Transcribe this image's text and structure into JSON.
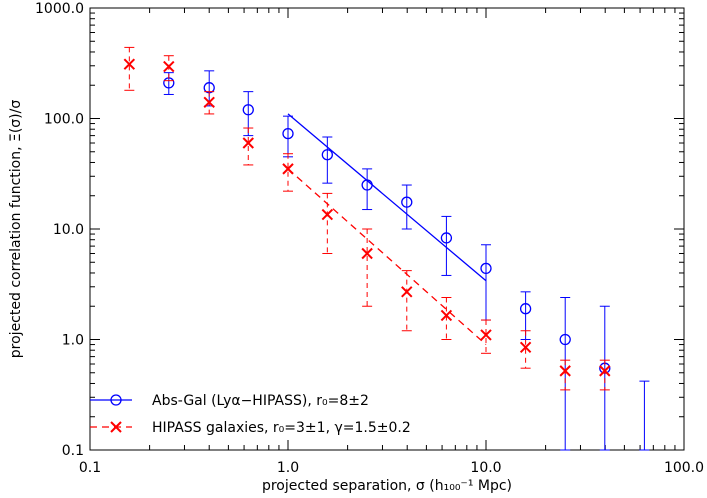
{
  "chart_data": {
    "type": "scatter",
    "xscale": "log",
    "yscale": "log",
    "xlim": [
      0.1,
      100.0
    ],
    "ylim": [
      0.1,
      1000.0
    ],
    "xlabel": "projected separation, σ (h₁₀₀⁻¹ Mpc)",
    "ylabel": "projected correlation function, Ξ(σ)/σ",
    "xticks": [
      {
        "value": 0.1,
        "label": "0.1"
      },
      {
        "value": 1.0,
        "label": "1.0"
      },
      {
        "value": 10.0,
        "label": "10.0"
      },
      {
        "value": 100.0,
        "label": "100.0"
      }
    ],
    "yticks": [
      {
        "value": 0.1,
        "label": "0.1"
      },
      {
        "value": 1.0,
        "label": "1.0"
      },
      {
        "value": 10.0,
        "label": "10.0"
      },
      {
        "value": 100.0,
        "label": "100.0"
      },
      {
        "value": 1000.0,
        "label": "1000.0"
      }
    ],
    "grid": false,
    "legend_position": "bottom-left",
    "series": [
      {
        "name": "Abs-Gal (Lyα−HIPASS), r₀=8±2",
        "color": "#0000ff",
        "marker": "circle",
        "linestyle": "solid",
        "points": [
          {
            "x": 0.25,
            "y": 210,
            "lo": 165,
            "hi": 260
          },
          {
            "x": 0.4,
            "y": 190,
            "lo": 130,
            "hi": 270
          },
          {
            "x": 0.63,
            "y": 120,
            "lo": 70,
            "hi": 175
          },
          {
            "x": 1.0,
            "y": 73,
            "lo": 45,
            "hi": 105
          },
          {
            "x": 1.58,
            "y": 47,
            "lo": 26,
            "hi": 68
          },
          {
            "x": 2.51,
            "y": 25,
            "lo": 15,
            "hi": 35
          },
          {
            "x": 3.98,
            "y": 17.5,
            "lo": 10,
            "hi": 25
          },
          {
            "x": 6.31,
            "y": 8.3,
            "lo": 3.8,
            "hi": 13
          },
          {
            "x": 10.0,
            "y": 4.4,
            "lo": 1.5,
            "hi": 7.2
          },
          {
            "x": 15.85,
            "y": 1.9,
            "lo": 1.0,
            "hi": 2.7
          },
          {
            "x": 25.12,
            "y": 1.0,
            "lo": 0.1,
            "hi": 2.4
          },
          {
            "x": 39.81,
            "y": 0.55,
            "lo": 0.1,
            "hi": 2.0
          },
          {
            "x": 63.1,
            "y": null,
            "lo": 0.1,
            "hi": 0.42
          }
        ],
        "fit": {
          "x": [
            1.0,
            10.0
          ],
          "y": [
            110,
            3.4
          ]
        }
      },
      {
        "name": "HIPASS galaxies, r₀=3±1, γ=1.5±0.2",
        "color": "#ff0000",
        "marker": "x",
        "linestyle": "dashed",
        "points": [
          {
            "x": 0.158,
            "y": 310,
            "lo": 180,
            "hi": 440
          },
          {
            "x": 0.25,
            "y": 295,
            "lo": 220,
            "hi": 370
          },
          {
            "x": 0.4,
            "y": 140,
            "lo": 110,
            "hi": 175
          },
          {
            "x": 0.63,
            "y": 60,
            "lo": 38,
            "hi": 82
          },
          {
            "x": 1.0,
            "y": 35,
            "lo": 22,
            "hi": 48
          },
          {
            "x": 1.58,
            "y": 13.5,
            "lo": 6,
            "hi": 21
          },
          {
            "x": 2.51,
            "y": 6.0,
            "lo": 2.0,
            "hi": 10
          },
          {
            "x": 3.98,
            "y": 2.7,
            "lo": 1.2,
            "hi": 4.2
          },
          {
            "x": 6.31,
            "y": 1.65,
            "lo": 1.0,
            "hi": 2.4
          },
          {
            "x": 10.0,
            "y": 1.1,
            "lo": 0.75,
            "hi": 1.5
          },
          {
            "x": 15.85,
            "y": 0.85,
            "lo": 0.55,
            "hi": 1.2
          },
          {
            "x": 25.12,
            "y": 0.52,
            "lo": 0.35,
            "hi": 0.65
          },
          {
            "x": 39.81,
            "y": 0.52,
            "lo": 0.35,
            "hi": 0.65
          }
        ],
        "fit": {
          "x": [
            1.0,
            10.0
          ],
          "y": [
            35,
            0.9
          ]
        }
      }
    ]
  }
}
